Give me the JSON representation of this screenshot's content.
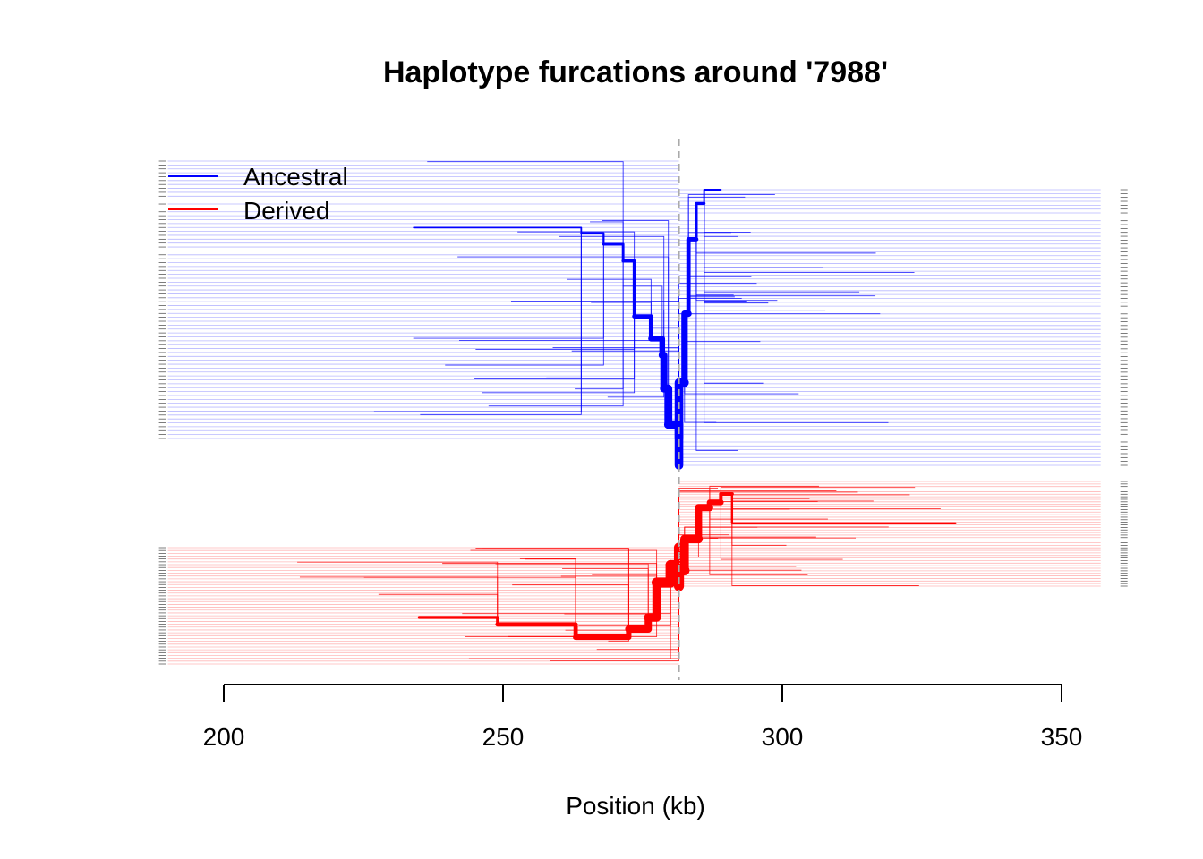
{
  "chart_data": {
    "type": "line",
    "title": "Haplotype furcations around '7988'",
    "xlabel": "Position (kb)",
    "ylabel": "",
    "xlim": [
      190,
      357
    ],
    "xticks": [
      200,
      250,
      300,
      350
    ],
    "focal_position": 281.5,
    "colors": {
      "ancestral": "#0000ff",
      "derived": "#ff0000",
      "focal_line": "#aaaaaa",
      "axis": "#000000"
    },
    "legend": {
      "position": "top-left",
      "entries": [
        {
          "label": "Ancestral",
          "color": "#0000ff"
        },
        {
          "label": "Derived",
          "color": "#ff0000"
        }
      ]
    },
    "series": [
      {
        "name": "Ancestral",
        "side": "left",
        "color": "#0000ff",
        "haplotype_count": 72,
        "haplotype_extent_kb": [
          190,
          281.5
        ],
        "trunk_path_kb": [
          {
            "x": 281.5,
            "y_frac": 1.0,
            "w": 6
          },
          {
            "x": 279.6,
            "y_frac": 0.95,
            "w": 5.5
          },
          {
            "x": 278.8,
            "y_frac": 0.82,
            "w": 5
          },
          {
            "x": 278.5,
            "y_frac": 0.7,
            "w": 4
          },
          {
            "x": 276.5,
            "y_frac": 0.64,
            "w": 3
          },
          {
            "x": 273.5,
            "y_frac": 0.56,
            "w": 2.2
          },
          {
            "x": 271.5,
            "y_frac": 0.36,
            "w": 1.8
          },
          {
            "x": 268,
            "y_frac": 0.3,
            "w": 1.4
          },
          {
            "x": 264,
            "y_frac": 0.26,
            "w": 1.1
          },
          {
            "x": 234,
            "y_frac": 0.24,
            "w": 0.8
          }
        ]
      },
      {
        "name": "Ancestral",
        "side": "right",
        "color": "#0000ff",
        "haplotype_count": 72,
        "haplotype_extent_kb": [
          281.5,
          357
        ],
        "trunk_path_kb": [
          {
            "x": 281.5,
            "y_frac": 1.0,
            "w": 6
          },
          {
            "x": 282.5,
            "y_frac": 0.7,
            "w": 4.5
          },
          {
            "x": 283.2,
            "y_frac": 0.45,
            "w": 3
          },
          {
            "x": 284.6,
            "y_frac": 0.18,
            "w": 2
          },
          {
            "x": 286,
            "y_frac": 0.05,
            "w": 1.2
          },
          {
            "x": 289,
            "y_frac": 0.0,
            "w": 0.8
          }
        ]
      },
      {
        "name": "Derived",
        "side": "left",
        "color": "#ff0000",
        "haplotype_count": 42,
        "haplotype_extent_kb": [
          190,
          281.5
        ],
        "trunk_path_kb": [
          {
            "x": 281.5,
            "y_frac": 0.0,
            "w": 7
          },
          {
            "x": 280,
            "y_frac": 0.15,
            "w": 7
          },
          {
            "x": 277.5,
            "y_frac": 0.3,
            "w": 6
          },
          {
            "x": 276,
            "y_frac": 0.6,
            "w": 5
          },
          {
            "x": 272.5,
            "y_frac": 0.7,
            "w": 3.8
          },
          {
            "x": 263,
            "y_frac": 0.77,
            "w": 3
          },
          {
            "x": 249,
            "y_frac": 0.66,
            "w": 2
          },
          {
            "x": 235,
            "y_frac": 0.6,
            "w": 1.2
          }
        ]
      },
      {
        "name": "Derived",
        "side": "right",
        "color": "#ff0000",
        "haplotype_count": 42,
        "haplotype_extent_kb": [
          281.5,
          357
        ],
        "trunk_path_kb": [
          {
            "x": 281.5,
            "y_frac": 1.0,
            "w": 7
          },
          {
            "x": 282.5,
            "y_frac": 0.85,
            "w": 6
          },
          {
            "x": 285,
            "y_frac": 0.55,
            "w": 5
          },
          {
            "x": 287,
            "y_frac": 0.25,
            "w": 4
          },
          {
            "x": 289,
            "y_frac": 0.2,
            "w": 2.5
          },
          {
            "x": 291,
            "y_frac": 0.12,
            "w": 1.5
          },
          {
            "x": 331,
            "y_frac": 0.4,
            "w": 1
          }
        ]
      }
    ]
  }
}
